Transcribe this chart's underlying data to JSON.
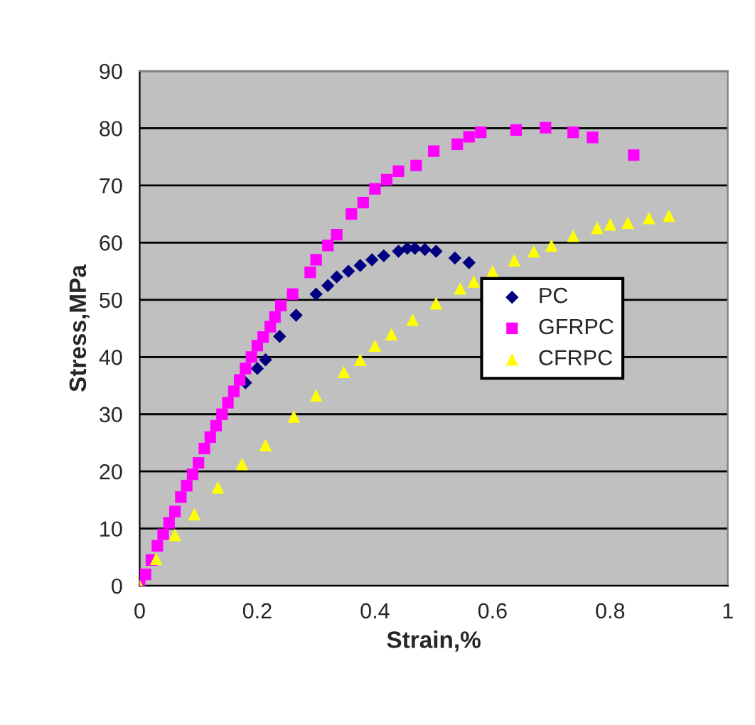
{
  "chart_data": {
    "type": "scatter",
    "xlabel": "Strain,%",
    "ylabel": "Stress,MPa",
    "xlim": [
      0,
      1
    ],
    "ylim": [
      0,
      90
    ],
    "xticks": [
      0,
      0.2,
      0.4,
      0.6,
      0.8,
      1
    ],
    "yticks": [
      0,
      10,
      20,
      30,
      40,
      50,
      60,
      70,
      80,
      90
    ],
    "grid": "y",
    "legend": "center right",
    "series": [
      {
        "name": "PC",
        "color": "#000080",
        "marker": "diamond",
        "x": [
          0.18,
          0.2,
          0.214,
          0.238,
          0.266,
          0.3,
          0.32,
          0.335,
          0.355,
          0.375,
          0.395,
          0.415,
          0.44,
          0.455,
          0.468,
          0.485,
          0.504,
          0.536,
          0.56
        ],
        "values": [
          35.5,
          38,
          39.5,
          43.6,
          47.3,
          51,
          52.5,
          54,
          55,
          56,
          57,
          57.7,
          58.5,
          59,
          59,
          58.8,
          58.5,
          57.3,
          56.5
        ]
      },
      {
        "name": "GFRPC",
        "color": "#ff00ff",
        "marker": "square",
        "x": [
          0,
          0.01,
          0.02,
          0.03,
          0.04,
          0.05,
          0.06,
          0.07,
          0.08,
          0.09,
          0.1,
          0.11,
          0.12,
          0.13,
          0.14,
          0.15,
          0.16,
          0.17,
          0.18,
          0.19,
          0.2,
          0.21,
          0.222,
          0.23,
          0.24,
          0.26,
          0.29,
          0.3,
          0.32,
          0.335,
          0.36,
          0.38,
          0.4,
          0.42,
          0.44,
          0.47,
          0.5,
          0.54,
          0.56,
          0.58,
          0.64,
          0.69,
          0.737,
          0.77,
          0.84
        ],
        "values": [
          0,
          2,
          4.5,
          7,
          9,
          11,
          13,
          15.5,
          17.5,
          19.5,
          21.5,
          24,
          26,
          28,
          30,
          32,
          34,
          36,
          38,
          40,
          42,
          43.5,
          45.3,
          47,
          49,
          51,
          54.8,
          57,
          59.5,
          61.4,
          65,
          67,
          69.4,
          71,
          72.5,
          73.5,
          76,
          77.2,
          78.5,
          79.3,
          79.7,
          80.1,
          79.3,
          78.4,
          75.3
        ]
      },
      {
        "name": "CFRPC",
        "color": "#ffff00",
        "marker": "triangle",
        "x": [
          0,
          0.028,
          0.06,
          0.093,
          0.133,
          0.174,
          0.214,
          0.262,
          0.3,
          0.347,
          0.375,
          0.4,
          0.428,
          0.464,
          0.504,
          0.545,
          0.568,
          0.6,
          0.637,
          0.67,
          0.7,
          0.737,
          0.778,
          0.8,
          0.83,
          0.866,
          0.9
        ],
        "values": [
          0,
          4.7,
          8.9,
          12.5,
          17.2,
          21.3,
          24.6,
          29.6,
          33.3,
          37.4,
          39.5,
          42,
          44,
          46.5,
          49.4,
          52,
          53.2,
          55,
          56.9,
          58.5,
          59.5,
          61.2,
          62.6,
          63.2,
          63.5,
          64.3,
          64.7
        ]
      }
    ]
  }
}
